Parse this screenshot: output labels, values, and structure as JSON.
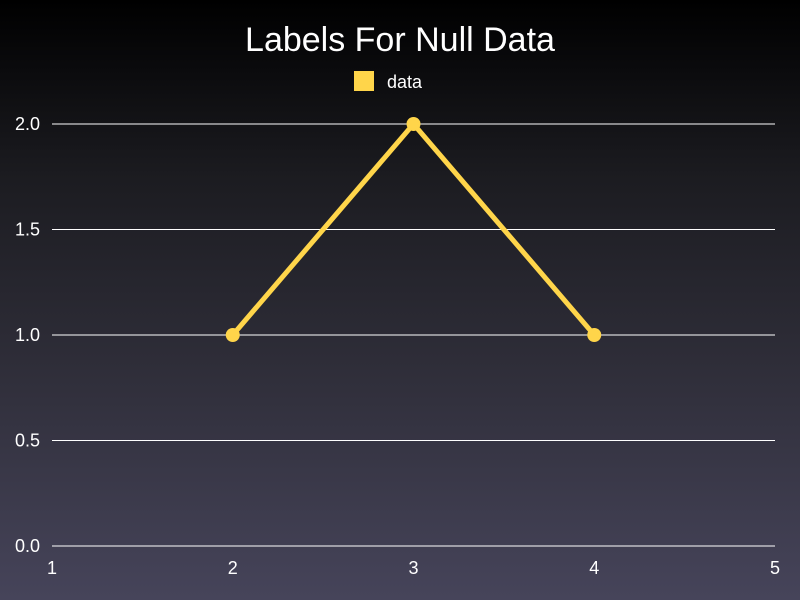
{
  "chart_data": {
    "type": "line",
    "title": "Labels For Null Data",
    "xlabel": "",
    "ylabel": "",
    "x": [
      1,
      2,
      3,
      4,
      5
    ],
    "xlim": [
      1,
      5
    ],
    "ylim": [
      0,
      2
    ],
    "x_ticks": [
      "1",
      "2",
      "3",
      "4",
      "5"
    ],
    "y_ticks": [
      "0.0",
      "0.5",
      "1.0",
      "1.5",
      "2.0"
    ],
    "grid": "horizontal",
    "legend_position": "top-center",
    "series": [
      {
        "name": "data",
        "color": "#ffd54a",
        "x": [
          1,
          2,
          3,
          4,
          5
        ],
        "values": [
          null,
          1,
          2,
          1,
          null
        ]
      }
    ]
  }
}
